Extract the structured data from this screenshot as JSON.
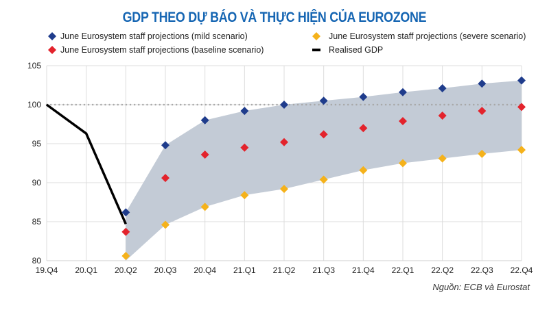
{
  "chart_data": {
    "type": "scatter",
    "title": "GDP THEO DỰ BÁO VÀ THỰC HIỆN CỦA EUROZONE",
    "categories": [
      "19.Q4",
      "20.Q1",
      "20.Q2",
      "20.Q3",
      "20.Q4",
      "21.Q1",
      "21.Q2",
      "21.Q3",
      "21.Q4",
      "22.Q1",
      "22.Q2",
      "22.Q3",
      "22.Q4"
    ],
    "yticks": [
      80,
      85,
      90,
      95,
      100,
      105
    ],
    "ylim": [
      80,
      105
    ],
    "grid": true,
    "reference_line": 100,
    "legend_placement": "top",
    "series": [
      {
        "name": "June Eurosystem staff projections (mild scenario)",
        "kind": "diamond",
        "color": "#1f3c8c",
        "values": [
          null,
          null,
          86.2,
          94.8,
          98.0,
          99.2,
          100.0,
          100.5,
          101.0,
          101.6,
          102.1,
          102.7,
          103.1
        ]
      },
      {
        "name": "June Eurosystem staff projections (severe scenario)",
        "kind": "diamond",
        "color": "#f5b21b",
        "values": [
          null,
          null,
          80.6,
          84.6,
          86.9,
          88.4,
          89.2,
          90.4,
          91.6,
          92.5,
          93.1,
          93.7,
          94.2
        ]
      },
      {
        "name": "June Eurosystem staff projections (baseline scenario)",
        "kind": "diamond",
        "color": "#e3232c",
        "values": [
          null,
          null,
          83.7,
          90.6,
          93.6,
          94.5,
          95.2,
          96.2,
          97.0,
          97.9,
          98.6,
          99.2,
          99.7
        ]
      },
      {
        "name": "Realised GDP",
        "kind": "line",
        "color": "#000000",
        "values": [
          100.0,
          96.3,
          84.7,
          null,
          null,
          null,
          null,
          null,
          null,
          null,
          null,
          null,
          null
        ]
      }
    ],
    "band_color": "#c3cbd6"
  },
  "source": "Nguồn: ECB và Eurostat"
}
